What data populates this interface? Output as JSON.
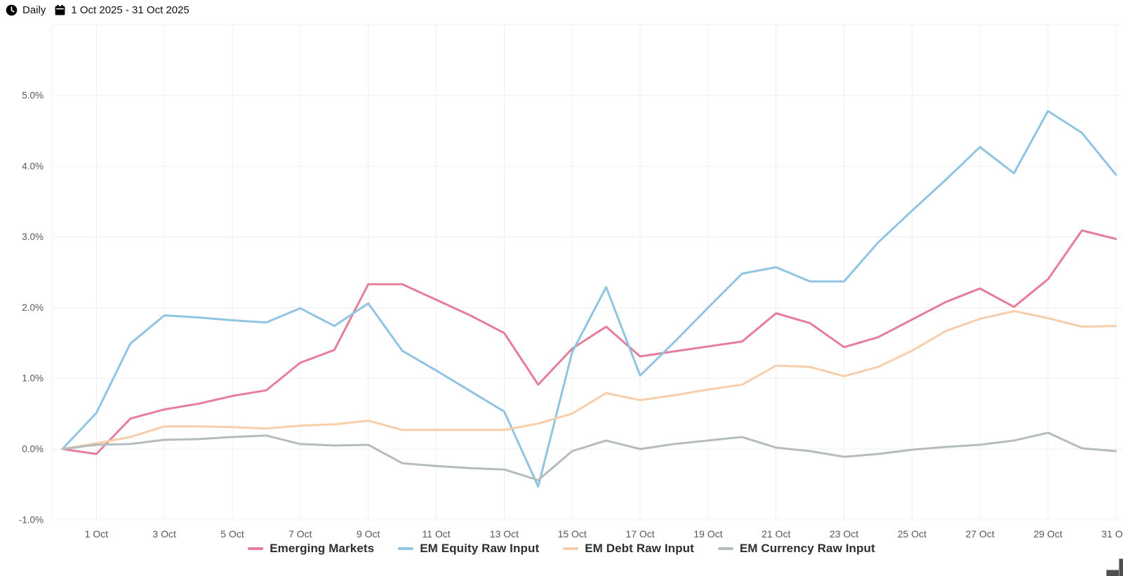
{
  "header": {
    "frequency_label": "Daily",
    "date_range": "1 Oct 2025 - 31 Oct 2025",
    "clock_icon": "clock-icon",
    "calendar_icon": "calendar-icon"
  },
  "chart_data": {
    "type": "line",
    "title": "",
    "xlabel": "",
    "ylabel": "",
    "grid": true,
    "legend_position": "bottom",
    "y_axis": {
      "min": -1.0,
      "max": 6.0,
      "tick_step": 1.0,
      "format": "percent"
    },
    "x": [
      "30 Sep",
      "1 Oct",
      "2 Oct",
      "3 Oct",
      "4 Oct",
      "5 Oct",
      "6 Oct",
      "7 Oct",
      "8 Oct",
      "9 Oct",
      "10 Oct",
      "11 Oct",
      "12 Oct",
      "13 Oct",
      "14 Oct",
      "15 Oct",
      "16 Oct",
      "17 Oct",
      "18 Oct",
      "19 Oct",
      "20 Oct",
      "21 Oct",
      "22 Oct",
      "23 Oct",
      "24 Oct",
      "25 Oct",
      "26 Oct",
      "27 Oct",
      "28 Oct",
      "29 Oct",
      "30 Oct",
      "31 Oct"
    ],
    "x_tick_labels": [
      "1 Oct",
      "3 Oct",
      "5 Oct",
      "7 Oct",
      "9 Oct",
      "11 Oct",
      "13 Oct",
      "15 Oct",
      "17 Oct",
      "19 Oct",
      "21 Oct",
      "23 Oct",
      "25 Oct",
      "27 Oct",
      "29 Oct",
      "31 Oct"
    ],
    "y_tick_labels": [
      "5.0%",
      "4.0%",
      "3.0%",
      "2.0%",
      "1.0%",
      "0.0%",
      "-1.0%"
    ],
    "series": [
      {
        "name": "Emerging Markets",
        "color": "#e57d9b",
        "values": [
          0,
          -0.07,
          0.43,
          0.56,
          0.64,
          0.75,
          0.83,
          1.22,
          1.4,
          2.33,
          2.33,
          2.11,
          1.89,
          1.64,
          0.91,
          1.42,
          1.73,
          1.31,
          1.38,
          1.45,
          1.52,
          1.92,
          1.78,
          1.44,
          1.58,
          1.83,
          2.08,
          2.27,
          2.01,
          2.4,
          3.09,
          2.97
        ]
      },
      {
        "name": "EM Equity Raw Input",
        "color": "#90c4e2",
        "values": [
          0,
          0.51,
          1.49,
          1.89,
          1.86,
          1.82,
          1.79,
          1.99,
          1.74,
          2.06,
          1.39,
          1.11,
          0.82,
          0.53,
          -0.53,
          1.37,
          2.29,
          1.04,
          1.51,
          2.0,
          2.48,
          2.57,
          2.37,
          2.37,
          2.92,
          3.37,
          3.81,
          4.27,
          3.9,
          4.78,
          4.47,
          3.88
        ]
      },
      {
        "name": "EM Debt Raw Input",
        "color": "#f8cda9",
        "values": [
          0,
          0.08,
          0.17,
          0.32,
          0.32,
          0.31,
          0.29,
          0.33,
          0.35,
          0.4,
          0.27,
          0.27,
          0.27,
          0.27,
          0.36,
          0.5,
          0.79,
          0.69,
          0.76,
          0.84,
          0.91,
          1.18,
          1.16,
          1.03,
          1.16,
          1.39,
          1.67,
          1.84,
          1.95,
          1.85,
          1.73,
          1.74
        ]
      },
      {
        "name": "EM Currency Raw Input",
        "color": "#b4bcbc",
        "values": [
          0,
          0.06,
          0.07,
          0.13,
          0.14,
          0.17,
          0.19,
          0.07,
          0.05,
          0.06,
          -0.2,
          -0.24,
          -0.27,
          -0.29,
          -0.44,
          -0.03,
          0.12,
          0.0,
          0.07,
          0.12,
          0.17,
          0.02,
          -0.03,
          -0.11,
          -0.07,
          -0.01,
          0.03,
          0.06,
          0.12,
          0.23,
          0.01,
          -0.03
        ]
      }
    ]
  }
}
